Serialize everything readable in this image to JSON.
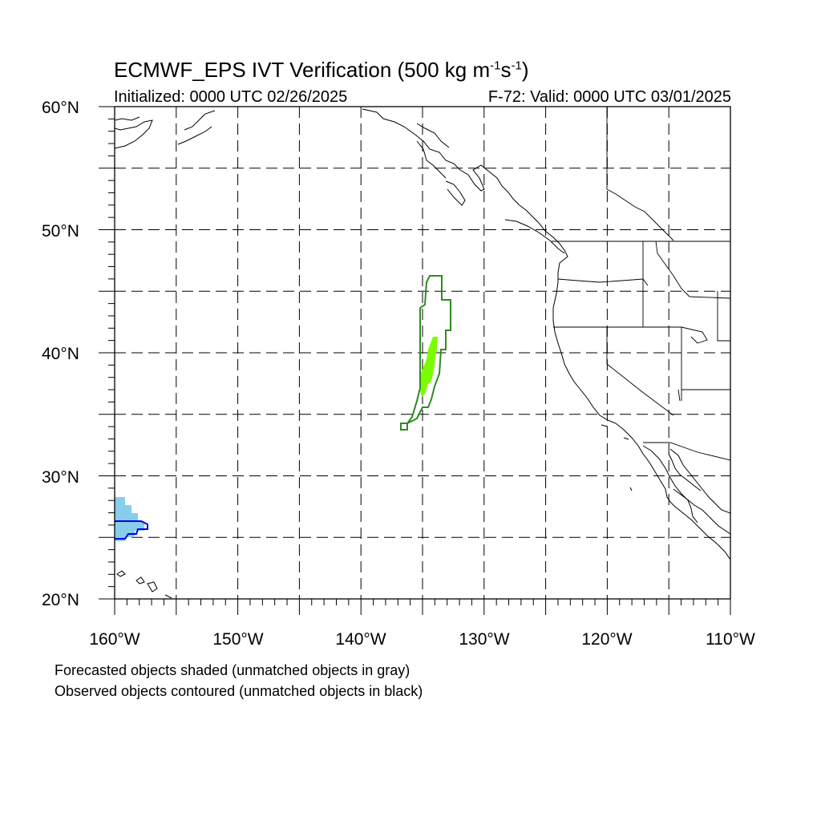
{
  "title": {
    "prefix": "ECMWF_EPS IVT Verification (500 kg m",
    "sup1": "-1",
    "mid": "s",
    "sup2": "-1",
    "suffix": ")"
  },
  "subtitle_left": "Initialized: 0000 UTC 02/26/2025",
  "subtitle_right": "F-72: Valid: 0000 UTC 03/01/2025",
  "map": {
    "lat_range": [
      20,
      60
    ],
    "lon_range": [
      -160,
      -110
    ],
    "lat_labels": [
      {
        "value": 60,
        "label": "60°N"
      },
      {
        "value": 50,
        "label": "50°N"
      },
      {
        "value": 40,
        "label": "40°N"
      },
      {
        "value": 30,
        "label": "30°N"
      },
      {
        "value": 20,
        "label": "20°N"
      }
    ],
    "lon_labels": [
      {
        "value": -160,
        "label": "160°W"
      },
      {
        "value": -150,
        "label": "150°W"
      },
      {
        "value": -140,
        "label": "140°W"
      },
      {
        "value": -130,
        "label": "130°W"
      },
      {
        "value": -120,
        "label": "120°W"
      },
      {
        "value": -110,
        "label": "110°W"
      }
    ],
    "gridlines_lat": [
      25,
      30,
      35,
      40,
      45,
      50,
      55
    ],
    "gridlines_lon": [
      -155,
      -150,
      -145,
      -140,
      -135,
      -130,
      -125,
      -120,
      -115
    ],
    "grid_style": "dashed",
    "colors": {
      "green_contour": "#2e8b22",
      "green_fill": "#7cfc00",
      "blue_contour": "#0000ee",
      "blue_fill": "#87ceeb",
      "coastline": "#000000"
    },
    "objects": [
      {
        "type": "observed-contour",
        "color": "green",
        "center_lat": 40,
        "center_lon": -134
      },
      {
        "type": "forecast-shaded",
        "color": "green",
        "center_lat": 39,
        "center_lon": -134.5
      },
      {
        "type": "forecast-shaded",
        "color": "blue",
        "center_lat": 26,
        "center_lon": -159
      },
      {
        "type": "observed-contour",
        "color": "blue",
        "center_lat": 25.8,
        "center_lon": -158.5
      }
    ]
  },
  "caption_line1": "Forecasted objects shaded (unmatched objects in gray)",
  "caption_line2": "Observed objects contoured (unmatched objects in black)"
}
